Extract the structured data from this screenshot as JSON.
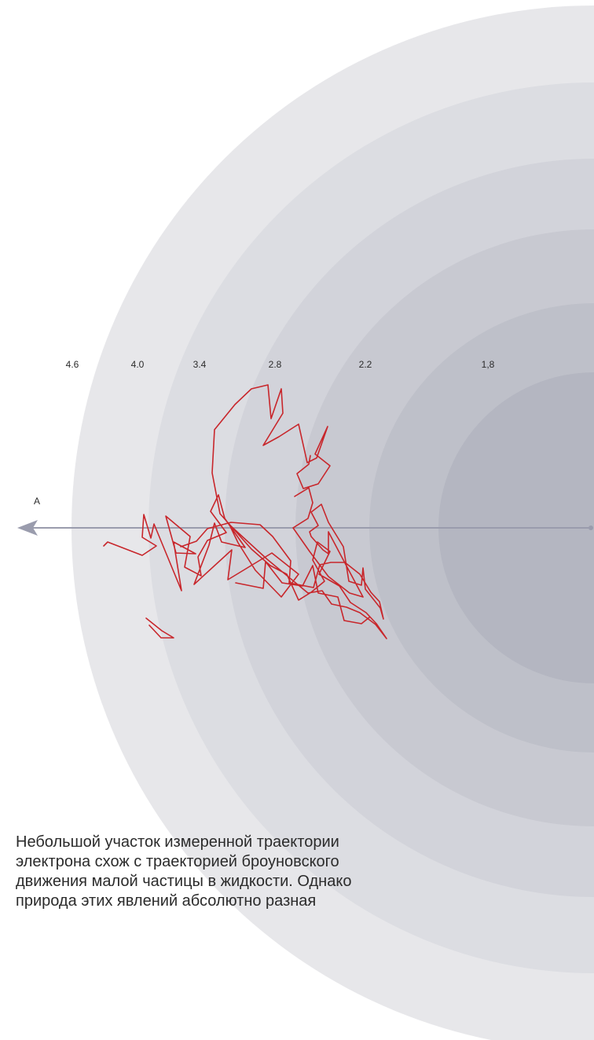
{
  "diagram": {
    "axis_label": "A",
    "ring_labels": [
      "4.6",
      "4.0",
      "3.4",
      "2.8",
      "2.2",
      "1,8"
    ],
    "colors": {
      "rings": [
        "#e7e7ea",
        "#dcdde2",
        "#d2d3da",
        "#c8c9d1",
        "#bec0c9",
        "#b4b6c1",
        "#abadb9"
      ],
      "trajectory": "#c8262b",
      "axis": "#9a9cad"
    }
  },
  "caption": {
    "lines": [
      "Небольшой участок измеренной траектории",
      "электрона схож с траекторией броуновского",
      "движения малой частицы в жидкости. Однако",
      "природа этих явлений абсолютно разная"
    ]
  }
}
